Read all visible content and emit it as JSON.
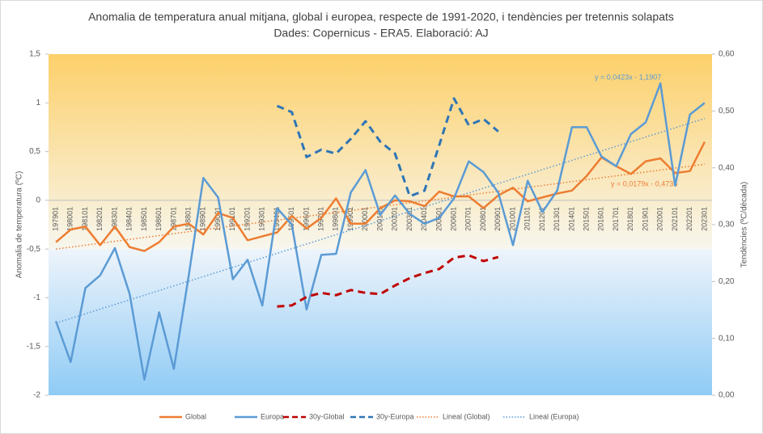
{
  "chart_data": {
    "type": "line",
    "title": "Anomalia de temperatura anual mitjana, global i europea, respecte de 1991-2020, i tendències per tretennis solapats",
    "subtitle": "Dades: Copernicus - ERA5. Elaboració: AJ",
    "y_label": "Anomalia de temperatura (ºC)",
    "y2_label": "Tendències (ºC/dècada)",
    "categories": [
      "197901",
      "198001",
      "198101",
      "198201",
      "198301",
      "198401",
      "198501",
      "198601",
      "198701",
      "198801",
      "198901",
      "199001",
      "199101",
      "199201",
      "199301",
      "199401",
      "199501",
      "199601",
      "199701",
      "199801",
      "199901",
      "200001",
      "200101",
      "200201",
      "200301",
      "200401",
      "200501",
      "200601",
      "200701",
      "200801",
      "200901",
      "201001",
      "201101",
      "201201",
      "201301",
      "201401",
      "201501",
      "201601",
      "201701",
      "201801",
      "201901",
      "202001",
      "202101",
      "202201",
      "202301"
    ],
    "series": [
      {
        "name": "Global",
        "color": "#ed7d31",
        "style": "solid",
        "values": [
          -0.43,
          -0.3,
          -0.27,
          -0.46,
          -0.27,
          -0.48,
          -0.52,
          -0.43,
          -0.27,
          -0.24,
          -0.35,
          -0.13,
          -0.18,
          -0.41,
          -0.37,
          -0.33,
          -0.16,
          -0.29,
          -0.18,
          0.02,
          -0.24,
          -0.24,
          -0.08,
          0.0,
          -0.01,
          -0.06,
          0.09,
          0.04,
          0.04,
          -0.08,
          0.05,
          0.13,
          -0.01,
          0.03,
          0.07,
          0.1,
          0.25,
          0.44,
          0.35,
          0.27,
          0.4,
          0.43,
          0.28,
          0.3,
          0.6
        ]
      },
      {
        "name": "Europa",
        "color": "#5b9bd5",
        "style": "solid",
        "values": [
          -1.24,
          -1.66,
          -0.9,
          -0.77,
          -0.49,
          -0.96,
          -1.84,
          -1.15,
          -1.73,
          -0.78,
          0.23,
          0.03,
          -0.81,
          -0.61,
          -1.08,
          -0.08,
          -0.25,
          -1.12,
          -0.56,
          -0.55,
          0.08,
          0.31,
          -0.15,
          0.05,
          -0.14,
          -0.24,
          -0.18,
          0.02,
          0.4,
          0.29,
          0.08,
          -0.46,
          0.2,
          -0.12,
          0.1,
          0.75,
          0.75,
          0.45,
          0.35,
          0.68,
          0.8,
          1.2,
          0.15,
          0.88,
          1.0
        ]
      },
      {
        "name": "30y-Global",
        "color": "#c00000",
        "style": "dashed",
        "axis": "y2",
        "values": [
          null,
          null,
          null,
          null,
          null,
          null,
          null,
          null,
          null,
          null,
          null,
          null,
          null,
          null,
          null,
          0.156,
          0.158,
          0.173,
          0.18,
          0.176,
          0.185,
          0.18,
          0.178,
          0.193,
          0.206,
          0.215,
          0.222,
          0.242,
          0.246,
          0.236,
          0.243,
          null,
          null,
          null,
          null,
          null,
          null,
          null,
          null,
          null,
          null,
          null,
          null,
          null,
          null
        ]
      },
      {
        "name": "30y-Europa",
        "color": "#2e75b6",
        "style": "dashed",
        "axis": "y2",
        "values": [
          null,
          null,
          null,
          null,
          null,
          null,
          null,
          null,
          null,
          null,
          null,
          null,
          null,
          null,
          null,
          0.509,
          0.498,
          0.419,
          0.432,
          0.425,
          0.451,
          0.482,
          0.446,
          0.425,
          0.35,
          0.36,
          0.44,
          0.522,
          0.475,
          0.486,
          0.464,
          null,
          null,
          null,
          null,
          null,
          null,
          null,
          null,
          null,
          null,
          null,
          null,
          null,
          null
        ]
      }
    ],
    "trendlines": [
      {
        "name": "Lineal  (Global)",
        "color": "#ed7d31",
        "start": -0.5,
        "end": 0.37,
        "equation": "y = 0,0179x - 0,4736"
      },
      {
        "name": "Lineal  (Europa)",
        "color": "#5b9bd5",
        "start": -1.26,
        "end": 0.84,
        "equation": "y = 0,0423x - 1,1907"
      }
    ],
    "ylim": [
      -2,
      1.5
    ],
    "yticks": [
      {
        "value": -2,
        "label": "-2"
      },
      {
        "value": -1.5,
        "label": "-1,5"
      },
      {
        "value": -1,
        "label": "-1"
      },
      {
        "value": -0.5,
        "label": "-0,5"
      },
      0,
      {
        "value": 0.5,
        "label": "0,5"
      },
      1,
      {
        "value": 1.5,
        "label": "1,5"
      }
    ],
    "y2lim": [
      0,
      0.6
    ],
    "y2ticks": [
      {
        "value": 0,
        "label": "0,00"
      },
      {
        "value": 0.1,
        "label": "0,10"
      },
      {
        "value": 0.2,
        "label": "0,20"
      },
      {
        "value": 0.3,
        "label": "0,30"
      },
      {
        "value": 0.4,
        "label": "0,40"
      },
      {
        "value": 0.5,
        "label": "0,50"
      },
      {
        "value": 0.6,
        "label": "0,60"
      }
    ],
    "legend": "bottom"
  }
}
